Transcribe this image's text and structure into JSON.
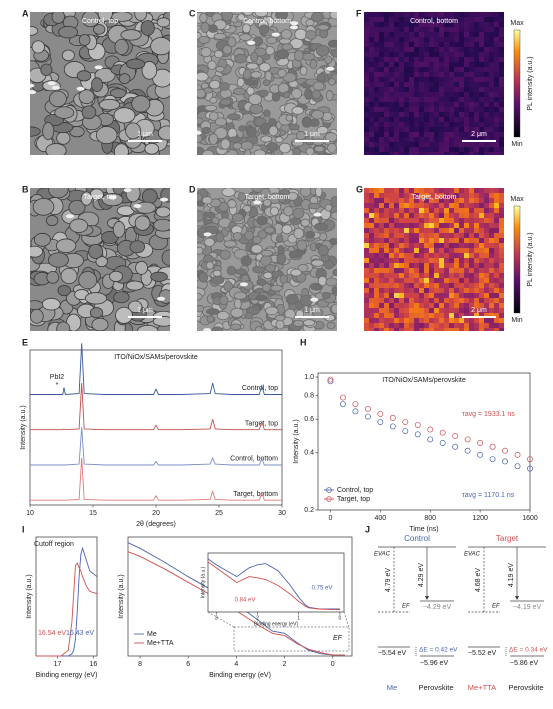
{
  "panels": {
    "A": {
      "letter": "A",
      "label": "Control, top",
      "scale": "1 μm"
    },
    "C": {
      "letter": "C",
      "label": "Control, bottom",
      "scale": "1 μm"
    },
    "F": {
      "letter": "F",
      "label": "Control, bottom",
      "scale": "2 μm",
      "cbar_max": "Max",
      "cbar_min": "Min",
      "cbar_title": "PL intensity (a.u.)"
    },
    "B": {
      "letter": "B",
      "label": "Target, top",
      "scale": "1 μm"
    },
    "D": {
      "letter": "D",
      "label": "Target, bottom",
      "scale": "1 μm"
    },
    "G": {
      "letter": "G",
      "label": "Target, bottom",
      "scale": "2 μm",
      "cbar_max": "Max",
      "cbar_min": "Min",
      "cbar_title": "PL intensity (a.u.)"
    }
  },
  "chart_data": [
    {
      "type": "line",
      "letter": "E",
      "title": "ITO/NiOx/SAMs/perovskite",
      "annotation": "PbI2",
      "marker": "*",
      "xlabel": "2θ (degrees)",
      "ylabel": "Intensity (a.u.)",
      "xlim": [
        10,
        30
      ],
      "xticks": [
        10,
        15,
        20,
        25,
        30
      ],
      "ylim": [
        0,
        40
      ],
      "x": [
        10,
        12,
        12.6,
        12.7,
        12.8,
        13.9,
        14.1,
        14.3,
        16,
        19.8,
        20,
        20.2,
        22,
        24.3,
        24.5,
        24.7,
        26,
        28.2,
        28.4,
        28.6,
        30
      ],
      "series": [
        {
          "name": "Control, top",
          "color": "#3c5a9a",
          "values": [
            2,
            2,
            2,
            10,
            2,
            3,
            60,
            3,
            2,
            2,
            8,
            2,
            2,
            3,
            15,
            3,
            2,
            2,
            12,
            2,
            2
          ]
        },
        {
          "name": "Target, top",
          "color": "#c0504d",
          "values": [
            2,
            2,
            2,
            3,
            2,
            3,
            55,
            3,
            2,
            2,
            7,
            2,
            2,
            3,
            14,
            3,
            2,
            2,
            11,
            2,
            2
          ]
        },
        {
          "name": "Control, bottom",
          "color": "#7b8fc7",
          "values": [
            2,
            2,
            2,
            2,
            2,
            3,
            45,
            3,
            2,
            2,
            6,
            2,
            2,
            3,
            10,
            3,
            2,
            2,
            9,
            2,
            2
          ]
        },
        {
          "name": "Target, bottom",
          "color": "#e07a78",
          "values": [
            2,
            2,
            2,
            2,
            2,
            3,
            50,
            3,
            2,
            2,
            7,
            2,
            2,
            3,
            12,
            3,
            2,
            2,
            10,
            2,
            2
          ]
        }
      ]
    },
    {
      "type": "scatter",
      "letter": "H",
      "title": "ITO/NiOx/SAMs/perovskite",
      "xlabel": "Time (ns)",
      "ylabel": "Intensity (a.u.)",
      "log_y": true,
      "xlim": [
        -100,
        1600
      ],
      "xticks": [
        0,
        400,
        800,
        1200,
        1600
      ],
      "ylim": [
        0.2,
        1.05
      ],
      "yticks": [
        0.2,
        0.4,
        0.6,
        0.8,
        {
          "value": 1,
          "label": "1.0"
        }
      ],
      "legend": "lower-left",
      "x": [
        0,
        100,
        200,
        300,
        400,
        500,
        600,
        700,
        800,
        900,
        1000,
        1100,
        1200,
        1300,
        1400,
        1500,
        1600
      ],
      "series": [
        {
          "name": "Control, top",
          "color": "#4a64b0",
          "annotation": "τavg = 1170.1 ns",
          "values": [
            0.95,
            0.72,
            0.66,
            0.62,
            0.58,
            0.55,
            0.52,
            0.5,
            0.47,
            0.45,
            0.43,
            0.41,
            0.39,
            0.37,
            0.36,
            0.34,
            0.33
          ]
        },
        {
          "name": "Target, top",
          "color": "#d05050",
          "annotation": "τavg = 1933.1 ns",
          "values": [
            0.97,
            0.78,
            0.72,
            0.68,
            0.64,
            0.61,
            0.58,
            0.56,
            0.53,
            0.51,
            0.49,
            0.47,
            0.45,
            0.43,
            0.41,
            0.39,
            0.37
          ]
        }
      ]
    },
    {
      "type": "line",
      "letter": "I",
      "title": "Cutoff region",
      "xlabel": "Binding energy (eV)",
      "ylabel": "Intensity (a.u.)",
      "xlim": [
        17.6,
        15.9
      ],
      "xticks": [
        17,
        16
      ],
      "ylim": [
        0,
        1.05
      ],
      "x": [
        17.6,
        17.2,
        16.9,
        16.7,
        16.6,
        16.55,
        16.5,
        16.45,
        16.4,
        16.35,
        16.3,
        16.2,
        16.1,
        15.9
      ],
      "series": [
        {
          "name": "Me",
          "color": "#4a64b0",
          "annotation": "16.43 eV",
          "values": [
            0,
            0,
            0,
            0,
            0.02,
            0.05,
            0.15,
            0.4,
            0.7,
            0.9,
            0.95,
            0.85,
            0.75,
            0.7
          ]
        },
        {
          "name": "Me+TTA",
          "color": "#d05050",
          "annotation": "16.54 eV",
          "values": [
            0,
            0,
            0,
            0.05,
            0.3,
            0.55,
            0.8,
            0.82,
            0.78,
            0.75,
            0.7,
            0.62,
            0.57,
            0.55
          ]
        }
      ]
    },
    {
      "type": "line",
      "xlabel": "Binding energy (eV)",
      "ylabel": "Intensity (a.u.)",
      "annotation": "EF",
      "legend": "lower-left",
      "xlim": [
        8.5,
        -0.8
      ],
      "xticks": [
        8,
        6,
        4,
        2,
        0
      ],
      "ylim": [
        0,
        1.05
      ],
      "x": [
        8.5,
        8,
        7,
        6,
        5,
        4,
        3.5,
        3,
        2.5,
        2,
        1.5,
        1,
        0.5,
        0,
        -0.5
      ],
      "series": [
        {
          "name": "Me",
          "color": "#4a64b0",
          "values": [
            1.0,
            0.95,
            0.83,
            0.7,
            0.58,
            0.45,
            0.38,
            0.3,
            0.22,
            0.2,
            0.12,
            0.05,
            0.02,
            0.01,
            0.01
          ]
        },
        {
          "name": "Me+TTA",
          "color": "#d05050",
          "values": [
            0.92,
            0.88,
            0.77,
            0.65,
            0.53,
            0.4,
            0.33,
            0.26,
            0.2,
            0.18,
            0.11,
            0.06,
            0.03,
            0.01,
            0.01
          ]
        }
      ]
    },
    {
      "type": "line",
      "xlabel": "Binding energy (eV)",
      "ylabel": "Intensity (a.u.)",
      "xlim": [
        3.2,
        -0.1
      ],
      "xticks": [
        3,
        2,
        1,
        0
      ],
      "ylim": [
        0,
        1
      ],
      "x": [
        3.2,
        3,
        2.5,
        2.2,
        2,
        1.8,
        1.5,
        1.2,
        1,
        0.84,
        0.75,
        0.5,
        0.2,
        0
      ],
      "series": [
        {
          "name": "Me",
          "color": "#4a64b0",
          "annotation": "0.75 eV",
          "values": [
            0.9,
            0.8,
            0.6,
            0.75,
            0.8,
            0.82,
            0.7,
            0.45,
            0.25,
            0.12,
            0.08,
            0.05,
            0.05,
            0.05
          ]
        },
        {
          "name": "Me+TTA",
          "color": "#d05050",
          "annotation": "0.84 eV",
          "values": [
            0.85,
            0.75,
            0.5,
            0.6,
            0.58,
            0.55,
            0.45,
            0.3,
            0.18,
            0.1,
            0.07,
            0.05,
            0.04,
            0.04
          ]
        }
      ]
    }
  ],
  "energy_diagram": {
    "letter": "J",
    "control": {
      "title": "Control",
      "evac": "EVAC",
      "ef": "EF",
      "wf": "4.79 eV",
      "perov_wf": "4.29 eV",
      "perov_cb": "−4.29 eV",
      "vb": "−5.54 eV",
      "de": "ΔE = 0.42 eV",
      "perov_vb": "−5.96 eV",
      "left": "Me",
      "right": "Perovskite"
    },
    "target": {
      "title": "Target",
      "evac": "EVAC",
      "ef": "EF",
      "wf": "4.68 eV",
      "perov_wf": "4.19 eV",
      "perov_cb": "−4.19 eV",
      "vb": "−5.52 eV",
      "de": "ΔE = 0.34 eV",
      "perov_vb": "−5.86 eV",
      "left": "Me+TTA",
      "right": "Perovskite"
    }
  }
}
